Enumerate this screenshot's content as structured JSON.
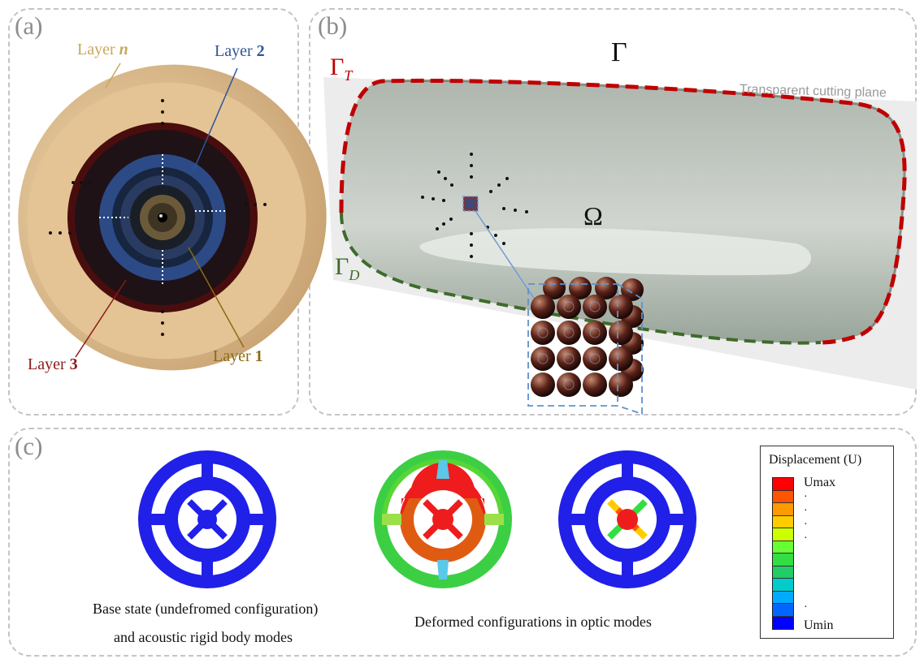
{
  "panel_a": {
    "label": "(a)",
    "layers": {
      "n_prefix": "Layer ",
      "n_bold": "n",
      "two_prefix": "Layer ",
      "two_bold": "2",
      "three_prefix": "Layer ",
      "three_bold": "3",
      "one_prefix": "Layer ",
      "one_bold": "1"
    },
    "colors": {
      "layer_n": "#c9a85a",
      "layer_2": "#2f5597",
      "layer_3": "#8b1a1a",
      "layer_1": "#8b6b14"
    }
  },
  "panel_b": {
    "label": "(b)",
    "gamma": "Γ",
    "gamma_t": "Γ",
    "gamma_t_sub": "T",
    "gamma_d": "Γ",
    "gamma_d_sub": "D",
    "omega": "Ω",
    "cutting_plane": "Transparent cutting plane",
    "colors": {
      "gamma_t": "#c00000",
      "gamma_d": "#3e6b2a"
    }
  },
  "panel_c": {
    "label": "(c)",
    "caption_left_1": "Base state (undefromed configuration)",
    "caption_left_2": "and acoustic rigid body modes",
    "caption_right": "Deformed configurations in optic modes",
    "legend": {
      "title": "Displacement (U)",
      "max": "Umax",
      "min": "Umin",
      "colors": [
        "#ff0000",
        "#ff5500",
        "#ff9900",
        "#ffcc00",
        "#ccff00",
        "#66ff33",
        "#33dd44",
        "#22cc66",
        "#00cccc",
        "#00aaff",
        "#0066ff",
        "#0000ff"
      ]
    }
  }
}
